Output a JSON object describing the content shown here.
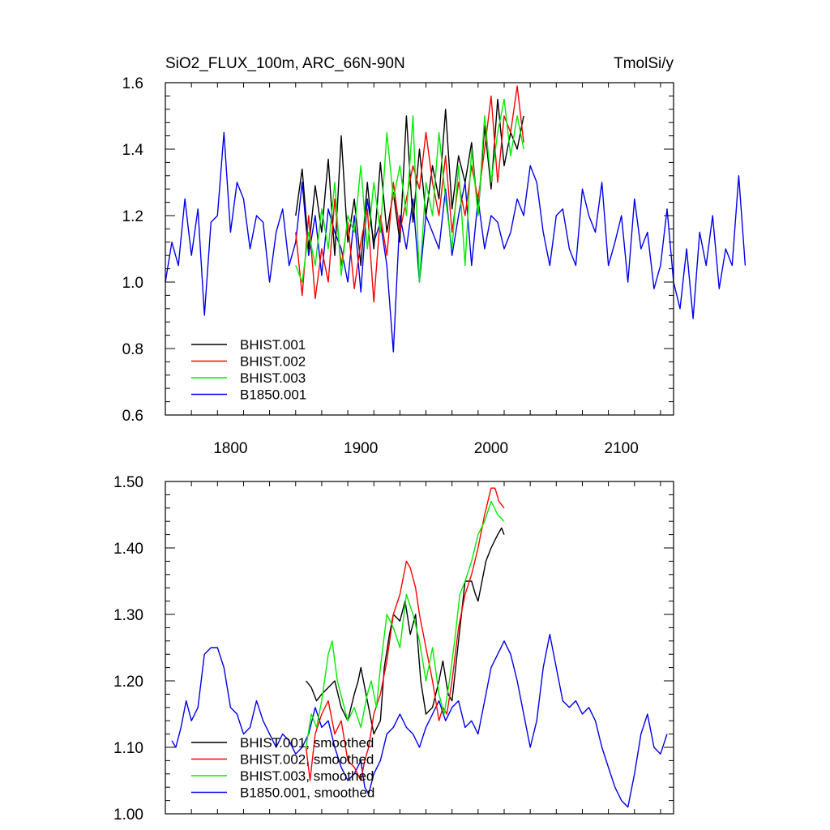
{
  "chart_data": [
    {
      "type": "line",
      "title_left": "SiO2_FLUX_100m, ARC_66N-90N",
      "title_right": "TmolSi/y",
      "xlabel": "",
      "ylabel": "",
      "xlim": [
        1750,
        2140
      ],
      "ylim": [
        0.6,
        1.6
      ],
      "x_ticks": [
        1800,
        1900,
        2000,
        2100
      ],
      "x_tick_labels": [
        "1800",
        "1900",
        "2000",
        "2100"
      ],
      "y_ticks": [
        0.6,
        0.8,
        1.0,
        1.2,
        1.4,
        1.6
      ],
      "y_tick_labels": [
        "0.6",
        "0.8",
        "1.0",
        "1.2",
        "1.4",
        "1.6"
      ],
      "legend_position": "bottom-left",
      "series": [
        {
          "name": "BHIST.001",
          "color": "#000000",
          "x_start": 1850,
          "x_step": 5,
          "values": [
            1.2,
            1.34,
            1.1,
            1.29,
            1.15,
            1.37,
            1.08,
            1.44,
            1.12,
            1.25,
            1.05,
            1.3,
            1.1,
            1.36,
            1.15,
            1.27,
            1.12,
            1.5,
            1.18,
            1.4,
            1.2,
            1.35,
            1.25,
            1.52,
            1.22,
            1.38,
            1.3,
            1.42,
            1.2,
            1.47,
            1.28,
            1.55,
            1.35,
            1.45,
            1.4,
            1.5
          ]
        },
        {
          "name": "BHIST.002",
          "color": "#ff0000",
          "x_start": 1850,
          "x_step": 5,
          "values": [
            1.15,
            0.96,
            1.2,
            0.95,
            1.1,
            1.0,
            1.25,
            1.05,
            1.18,
            0.98,
            1.12,
            1.22,
            0.94,
            1.2,
            1.08,
            1.3,
            1.15,
            1.25,
            1.35,
            1.28,
            1.45,
            1.3,
            1.2,
            1.38,
            1.15,
            1.3,
            1.2,
            1.35,
            1.25,
            1.4,
            1.56,
            1.3,
            1.5,
            1.45,
            1.59,
            1.42
          ]
        },
        {
          "name": "BHIST.003",
          "color": "#00ee00",
          "x_start": 1850,
          "x_step": 5,
          "values": [
            1.05,
            1.0,
            1.15,
            1.05,
            1.22,
            1.1,
            1.3,
            1.02,
            1.2,
            1.15,
            1.35,
            1.1,
            1.3,
            1.15,
            1.45,
            1.25,
            1.35,
            1.2,
            1.5,
            1.0,
            1.3,
            1.2,
            1.45,
            1.25,
            1.1,
            1.35,
            1.05,
            1.4,
            1.2,
            1.5,
            1.3,
            1.45,
            1.55,
            1.38,
            1.5,
            1.4
          ]
        },
        {
          "name": "B1850.001",
          "color": "#0000ee",
          "x_start": 1750,
          "x_step": 5,
          "values": [
            1.0,
            1.12,
            1.05,
            1.25,
            1.08,
            1.22,
            0.9,
            1.18,
            1.2,
            1.45,
            1.15,
            1.3,
            1.25,
            1.1,
            1.2,
            1.18,
            1.0,
            1.15,
            1.22,
            1.05,
            1.12,
            1.3,
            1.08,
            1.2,
            1.02,
            1.22,
            1.15,
            1.1,
            1.0,
            1.2,
            0.97,
            1.25,
            1.12,
            1.18,
            1.05,
            0.79,
            1.2,
            1.1,
            1.25,
            1.0,
            1.2,
            1.15,
            1.1,
            1.28,
            1.08,
            1.2,
            1.3,
            1.05,
            1.25,
            1.1,
            1.2,
            1.18,
            1.1,
            1.15,
            1.25,
            1.2,
            1.35,
            1.3,
            1.15,
            1.05,
            1.2,
            1.22,
            1.1,
            1.05,
            1.28,
            1.2,
            1.15,
            1.3,
            1.05,
            1.12,
            1.2,
            1.0,
            1.25,
            1.1,
            1.15,
            0.98,
            1.05,
            1.22,
            1.0,
            0.92,
            1.1,
            0.89,
            1.15,
            1.05,
            1.2,
            0.98,
            1.1,
            1.05,
            1.32,
            1.05
          ]
        }
      ]
    },
    {
      "type": "line",
      "title_left": "",
      "title_right": "",
      "xlabel": "",
      "ylabel": "",
      "xlim": [
        1750,
        2140
      ],
      "ylim": [
        1.0,
        1.5
      ],
      "x_ticks": [
        1800,
        1900,
        2000,
        2100
      ],
      "x_tick_labels": [],
      "y_ticks": [
        1.0,
        1.1,
        1.2,
        1.3,
        1.4,
        1.5
      ],
      "y_tick_labels": [
        "1.00",
        "1.10",
        "1.20",
        "1.30",
        "1.40",
        "1.50"
      ],
      "legend_position": "bottom-left",
      "series": [
        {
          "name": "BHIST.001, smoothed",
          "color": "#000000",
          "x": [
            1858,
            1862,
            1866,
            1870,
            1875,
            1880,
            1885,
            1890,
            1895,
            1898,
            1900,
            1905,
            1910,
            1915,
            1918,
            1922,
            1925,
            1930,
            1934,
            1938,
            1942,
            1946,
            1950,
            1955,
            1960,
            1963,
            1967,
            1970,
            1975,
            1980,
            1985,
            1988,
            1990,
            1993,
            1996,
            2000,
            2005,
            2008,
            2010
          ],
          "values": [
            1.2,
            1.19,
            1.17,
            1.18,
            1.19,
            1.2,
            1.16,
            1.14,
            1.18,
            1.2,
            1.22,
            1.17,
            1.12,
            1.14,
            1.22,
            1.27,
            1.3,
            1.29,
            1.32,
            1.27,
            1.3,
            1.2,
            1.15,
            1.16,
            1.2,
            1.23,
            1.18,
            1.17,
            1.26,
            1.35,
            1.35,
            1.33,
            1.32,
            1.35,
            1.38,
            1.4,
            1.42,
            1.43,
            1.42
          ]
        },
        {
          "name": "BHIST.002, smoothed",
          "color": "#ff0000",
          "x": [
            1858,
            1861,
            1865,
            1870,
            1875,
            1880,
            1885,
            1890,
            1895,
            1900,
            1903,
            1906,
            1910,
            1915,
            1920,
            1925,
            1930,
            1935,
            1938,
            1942,
            1945,
            1950,
            1955,
            1960,
            1963,
            1966,
            1970,
            1975,
            1980,
            1985,
            1990,
            1995,
            2000,
            2003,
            2006,
            2010
          ],
          "values": [
            1.1,
            1.05,
            1.12,
            1.15,
            1.17,
            1.12,
            1.14,
            1.08,
            1.07,
            1.05,
            1.08,
            1.1,
            1.15,
            1.18,
            1.23,
            1.3,
            1.33,
            1.38,
            1.37,
            1.34,
            1.3,
            1.25,
            1.2,
            1.14,
            1.16,
            1.15,
            1.2,
            1.28,
            1.33,
            1.36,
            1.4,
            1.45,
            1.49,
            1.49,
            1.47,
            1.46
          ]
        },
        {
          "name": "BHIST.003, smoothed",
          "color": "#00ee00",
          "x": [
            1858,
            1862,
            1866,
            1870,
            1875,
            1878,
            1882,
            1886,
            1890,
            1895,
            1900,
            1905,
            1908,
            1912,
            1915,
            1920,
            1925,
            1930,
            1935,
            1940,
            1945,
            1950,
            1955,
            1960,
            1964,
            1968,
            1972,
            1976,
            1980,
            1985,
            1990,
            1995,
            2000,
            2005,
            2010
          ],
          "values": [
            1.1,
            1.15,
            1.13,
            1.17,
            1.24,
            1.26,
            1.2,
            1.17,
            1.14,
            1.16,
            1.13,
            1.18,
            1.2,
            1.16,
            1.22,
            1.3,
            1.28,
            1.25,
            1.33,
            1.3,
            1.26,
            1.2,
            1.25,
            1.18,
            1.15,
            1.2,
            1.26,
            1.33,
            1.35,
            1.38,
            1.42,
            1.44,
            1.47,
            1.45,
            1.44
          ]
        },
        {
          "name": "B1850.001, smoothed",
          "color": "#0000ee",
          "x": [
            1755,
            1758,
            1762,
            1766,
            1770,
            1775,
            1780,
            1785,
            1790,
            1795,
            1800,
            1805,
            1810,
            1815,
            1820,
            1825,
            1830,
            1835,
            1840,
            1845,
            1850,
            1855,
            1860,
            1865,
            1870,
            1875,
            1880,
            1885,
            1890,
            1895,
            1900,
            1903,
            1906,
            1910,
            1915,
            1920,
            1925,
            1930,
            1935,
            1940,
            1945,
            1950,
            1955,
            1960,
            1965,
            1970,
            1975,
            1980,
            1985,
            1990,
            1995,
            2000,
            2005,
            2010,
            2015,
            2020,
            2025,
            2030,
            2035,
            2040,
            2045,
            2050,
            2055,
            2060,
            2065,
            2070,
            2075,
            2080,
            2085,
            2090,
            2095,
            2100,
            2105,
            2110,
            2115,
            2120,
            2125,
            2130,
            2135
          ],
          "values": [
            1.11,
            1.1,
            1.13,
            1.17,
            1.14,
            1.16,
            1.24,
            1.25,
            1.25,
            1.22,
            1.16,
            1.15,
            1.12,
            1.13,
            1.17,
            1.14,
            1.12,
            1.1,
            1.12,
            1.11,
            1.09,
            1.1,
            1.12,
            1.16,
            1.13,
            1.14,
            1.1,
            1.07,
            1.05,
            1.06,
            1.08,
            1.04,
            1.03,
            1.06,
            1.08,
            1.12,
            1.13,
            1.15,
            1.13,
            1.12,
            1.1,
            1.13,
            1.15,
            1.17,
            1.14,
            1.16,
            1.17,
            1.13,
            1.14,
            1.12,
            1.17,
            1.22,
            1.24,
            1.26,
            1.24,
            1.2,
            1.15,
            1.1,
            1.14,
            1.22,
            1.27,
            1.22,
            1.17,
            1.16,
            1.17,
            1.15,
            1.16,
            1.14,
            1.1,
            1.07,
            1.04,
            1.02,
            1.01,
            1.06,
            1.12,
            1.15,
            1.1,
            1.09,
            1.12
          ]
        }
      ]
    }
  ]
}
